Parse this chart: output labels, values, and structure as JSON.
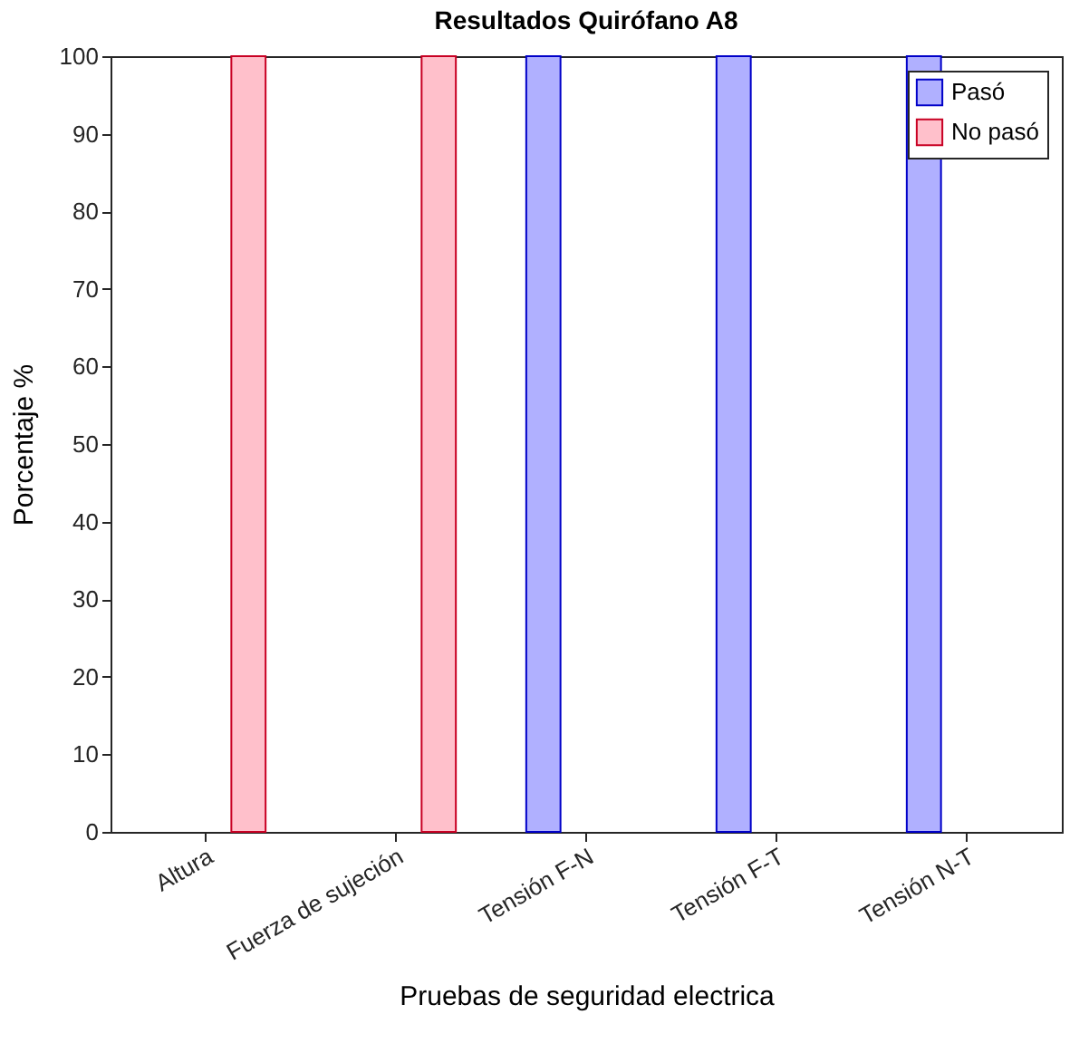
{
  "chart_data": {
    "type": "bar",
    "title": "Resultados Quirófano A8",
    "xlabel": "Pruebas de seguridad electrica",
    "ylabel": "Porcentaje %",
    "categories": [
      "Altura",
      "Fuerza de sujeción",
      "Tensión F-N",
      "Tensión F-T",
      "Tensión N-T"
    ],
    "series": [
      {
        "name": "Pasó",
        "color": "#b0b0ff",
        "values": [
          0,
          0,
          100,
          100,
          100
        ]
      },
      {
        "name": "No pasó",
        "color": "#ffc0cb",
        "values": [
          100,
          100,
          0,
          0,
          0
        ]
      }
    ],
    "ylim": [
      0,
      100
    ],
    "yticks": [
      0,
      10,
      20,
      30,
      40,
      50,
      60,
      70,
      80,
      90,
      100
    ],
    "grid": false,
    "legend": "top right"
  }
}
